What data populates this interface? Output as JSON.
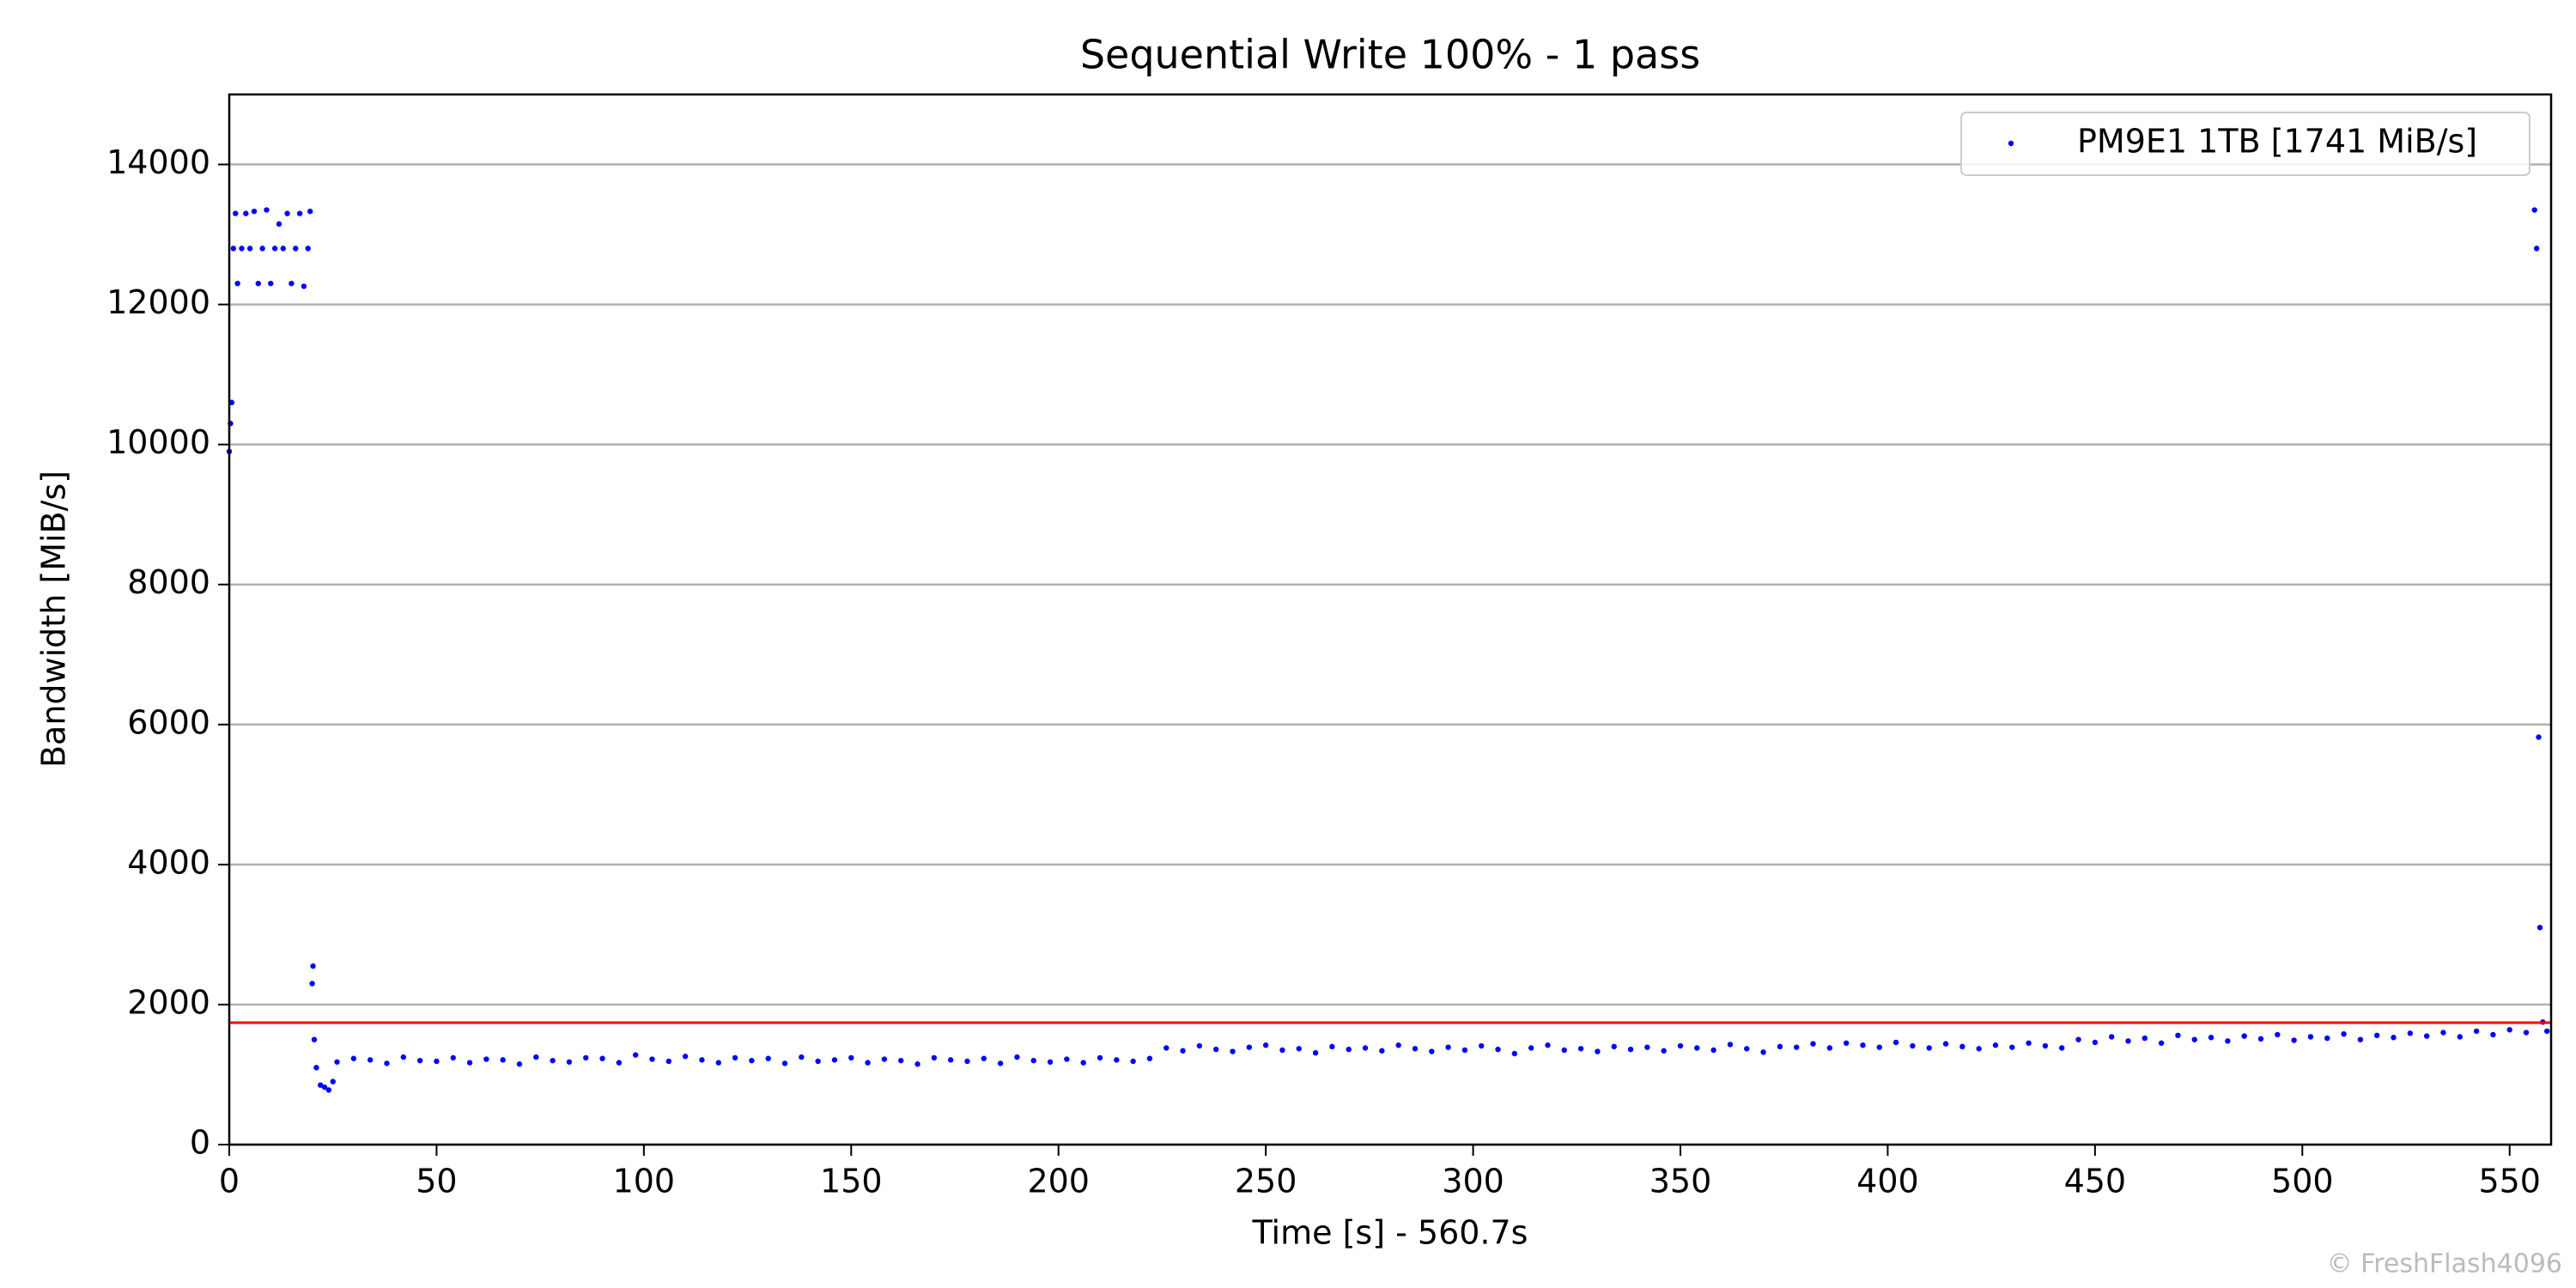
{
  "chart_data": {
    "type": "scatter",
    "title": "Sequential Write 100% - 1 pass",
    "x_label": "Time [s] - 560.7s",
    "y_label": "Bandwidth [MiB/s]",
    "watermark": "© FreshFlash4096",
    "xlim": [
      0,
      560
    ],
    "ylim": [
      0,
      15000
    ],
    "xticks": [
      0,
      50,
      100,
      150,
      200,
      250,
      300,
      350,
      400,
      450,
      500,
      550
    ],
    "yticks": [
      0,
      2000,
      4000,
      6000,
      8000,
      10000,
      12000,
      14000
    ],
    "grid": true,
    "legend": "upper right",
    "hline": 1741,
    "hline_color": "#ff0000",
    "series": [
      {
        "name": "PM9E1 1TB [1741 MiB/s]",
        "color": "#0000ff",
        "x": [
          0,
          0.3,
          0.6,
          1,
          1.5,
          2,
          3,
          4,
          5,
          6,
          7,
          8,
          9,
          10,
          11,
          12,
          13,
          14,
          15,
          16,
          17,
          18,
          19,
          19.5,
          20,
          20.2,
          20.5,
          21,
          22,
          23,
          24,
          25,
          26,
          30,
          34,
          38,
          42,
          46,
          50,
          54,
          58,
          62,
          66,
          70,
          74,
          78,
          82,
          86,
          90,
          94,
          98,
          102,
          106,
          110,
          114,
          118,
          122,
          126,
          130,
          134,
          138,
          142,
          146,
          150,
          154,
          158,
          162,
          166,
          170,
          174,
          178,
          182,
          186,
          190,
          194,
          198,
          202,
          206,
          210,
          214,
          218,
          222,
          226,
          230,
          234,
          238,
          242,
          246,
          250,
          254,
          258,
          262,
          266,
          270,
          274,
          278,
          282,
          286,
          290,
          294,
          298,
          302,
          306,
          310,
          314,
          318,
          322,
          326,
          330,
          334,
          338,
          342,
          346,
          350,
          354,
          358,
          362,
          366,
          370,
          374,
          378,
          382,
          386,
          390,
          394,
          398,
          402,
          406,
          410,
          414,
          418,
          422,
          426,
          430,
          434,
          438,
          442,
          446,
          450,
          454,
          458,
          462,
          466,
          470,
          474,
          478,
          482,
          486,
          490,
          494,
          498,
          502,
          506,
          510,
          514,
          518,
          522,
          526,
          530,
          534,
          538,
          542,
          546,
          550,
          554,
          556,
          556.5,
          557,
          557.3,
          558,
          559
        ],
        "values": [
          9900,
          10300,
          10600,
          12800,
          13300,
          12300,
          12800,
          13300,
          12800,
          13330,
          12300,
          12800,
          13350,
          12300,
          12800,
          13150,
          12800,
          13300,
          12300,
          12800,
          13300,
          12260,
          12800,
          13330,
          2300,
          2550,
          1500,
          1100,
          850,
          820,
          780,
          900,
          1180,
          1230,
          1210,
          1160,
          1250,
          1200,
          1190,
          1240,
          1170,
          1220,
          1210,
          1150,
          1250,
          1200,
          1180,
          1240,
          1230,
          1170,
          1280,
          1220,
          1190,
          1260,
          1210,
          1170,
          1240,
          1200,
          1230,
          1160,
          1250,
          1190,
          1210,
          1240,
          1170,
          1220,
          1200,
          1150,
          1240,
          1210,
          1190,
          1230,
          1160,
          1250,
          1200,
          1180,
          1220,
          1170,
          1240,
          1210,
          1190,
          1230,
          1380,
          1340,
          1410,
          1360,
          1330,
          1390,
          1420,
          1350,
          1370,
          1310,
          1400,
          1360,
          1380,
          1340,
          1420,
          1370,
          1330,
          1390,
          1350,
          1410,
          1360,
          1300,
          1380,
          1420,
          1350,
          1370,
          1330,
          1400,
          1360,
          1390,
          1340,
          1410,
          1380,
          1350,
          1430,
          1370,
          1320,
          1400,
          1390,
          1440,
          1380,
          1450,
          1420,
          1390,
          1460,
          1410,
          1380,
          1440,
          1400,
          1370,
          1420,
          1390,
          1450,
          1410,
          1380,
          1500,
          1460,
          1540,
          1480,
          1520,
          1450,
          1560,
          1500,
          1530,
          1480,
          1550,
          1510,
          1570,
          1490,
          1540,
          1520,
          1580,
          1500,
          1560,
          1530,
          1590,
          1550,
          1600,
          1540,
          1620,
          1570,
          1640,
          1600,
          13350,
          12800,
          5820,
          3100,
          1750,
          1620
        ]
      }
    ]
  }
}
